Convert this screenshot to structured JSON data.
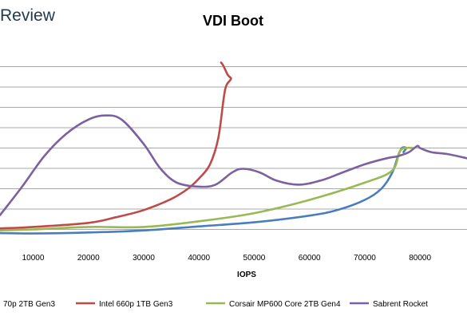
{
  "brand": {
    "text": "Review",
    "color": "#1e3a4f"
  },
  "chart_data": {
    "type": "line",
    "title": "VDI Boot",
    "xlabel": "IOPS",
    "ylabel": "",
    "x_ticks": [
      10000,
      20000,
      30000,
      40000,
      50000,
      60000,
      70000,
      80000
    ],
    "xlim": [
      4000,
      88500
    ],
    "ylim": [
      0,
      10
    ],
    "grid": true,
    "legend_position": "bottom",
    "series": [
      {
        "name": "70p 2TB Gen3",
        "color": "#4a7ebb",
        "points": [
          [
            4000,
            0.82
          ],
          [
            10000,
            0.8
          ],
          [
            20000,
            0.85
          ],
          [
            30000,
            0.95
          ],
          [
            40000,
            1.15
          ],
          [
            50000,
            1.35
          ],
          [
            60000,
            1.68
          ],
          [
            65000,
            1.95
          ],
          [
            70000,
            2.45
          ],
          [
            73000,
            3.0
          ],
          [
            75000,
            3.8
          ],
          [
            76000,
            4.6
          ],
          [
            76700,
            5.0
          ],
          [
            77500,
            5.0
          ],
          [
            77000,
            4.8
          ]
        ]
      },
      {
        "name": "Intel 660p 1TB Gen3",
        "color": "#be4b48",
        "points": [
          [
            4000,
            1.05
          ],
          [
            10000,
            1.12
          ],
          [
            20000,
            1.32
          ],
          [
            25000,
            1.6
          ],
          [
            30000,
            1.95
          ],
          [
            35000,
            2.5
          ],
          [
            38000,
            3.0
          ],
          [
            40000,
            3.5
          ],
          [
            42000,
            4.2
          ],
          [
            43500,
            5.5
          ],
          [
            44500,
            7.5
          ],
          [
            45000,
            8.1
          ],
          [
            45800,
            8.4
          ],
          [
            45200,
            8.6
          ],
          [
            44400,
            9.05
          ],
          [
            44000,
            9.2
          ]
        ]
      },
      {
        "name": "Corsair MP600 Core 2TB Gen4",
        "color": "#98b954",
        "points": [
          [
            4000,
            0.95
          ],
          [
            10000,
            1.0
          ],
          [
            20000,
            1.12
          ],
          [
            30000,
            1.12
          ],
          [
            40000,
            1.4
          ],
          [
            50000,
            1.8
          ],
          [
            60000,
            2.45
          ],
          [
            70000,
            3.3
          ],
          [
            75000,
            3.9
          ],
          [
            76500,
            4.9
          ],
          [
            79000,
            5.0
          ]
        ]
      },
      {
        "name": "Sabrent Rocket",
        "color": "#7d60a0",
        "points": [
          [
            4000,
            1.7
          ],
          [
            8000,
            3.1
          ],
          [
            12000,
            4.6
          ],
          [
            16000,
            5.7
          ],
          [
            20000,
            6.4
          ],
          [
            23000,
            6.6
          ],
          [
            26000,
            6.4
          ],
          [
            30000,
            5.2
          ],
          [
            33000,
            4.0
          ],
          [
            36000,
            3.3
          ],
          [
            40000,
            3.1
          ],
          [
            43000,
            3.2
          ],
          [
            46000,
            3.8
          ],
          [
            48000,
            3.98
          ],
          [
            51000,
            3.8
          ],
          [
            54000,
            3.4
          ],
          [
            58000,
            3.2
          ],
          [
            62000,
            3.4
          ],
          [
            66000,
            3.8
          ],
          [
            70000,
            4.2
          ],
          [
            74000,
            4.5
          ],
          [
            76000,
            4.6
          ],
          [
            78000,
            4.8
          ],
          [
            79500,
            5.1
          ],
          [
            80000,
            5.0
          ],
          [
            82000,
            4.8
          ],
          [
            85000,
            4.7
          ],
          [
            88500,
            4.5
          ]
        ]
      }
    ]
  }
}
